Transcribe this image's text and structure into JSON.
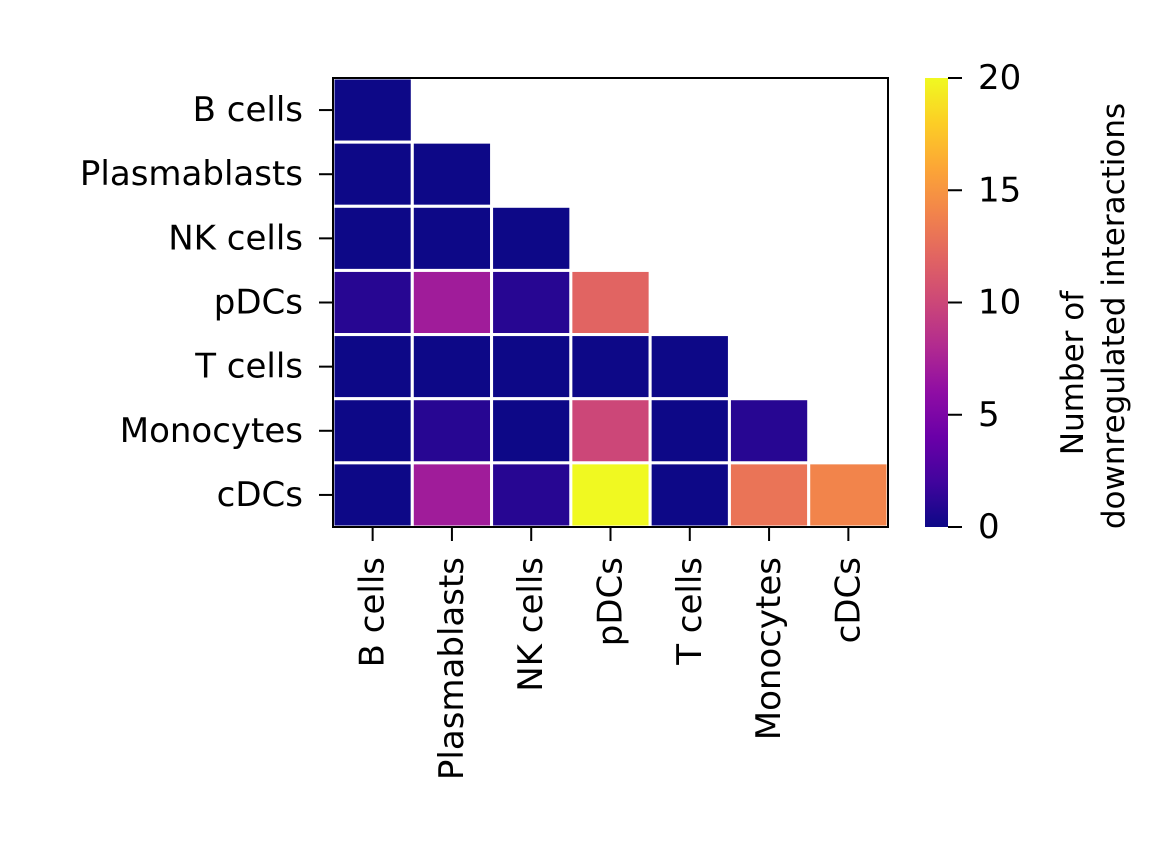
{
  "chart_data": {
    "type": "heatmap",
    "rows": [
      "B cells",
      "Plasmablasts",
      "NK cells",
      "pDCs",
      "T cells",
      "Monocytes",
      "cDCs"
    ],
    "columns": [
      "B cells",
      "Plasmablasts",
      "NK cells",
      "pDCs",
      "T cells",
      "Monocytes",
      "cDCs"
    ],
    "values": [
      [
        0
      ],
      [
        0,
        0
      ],
      [
        0,
        0,
        0
      ],
      [
        1,
        7,
        1,
        12
      ],
      [
        0,
        0,
        0,
        0,
        0
      ],
      [
        0,
        1,
        0,
        10,
        0,
        1
      ],
      [
        0,
        7,
        1,
        20,
        0,
        13,
        14
      ]
    ],
    "mask": "upper-triangle",
    "colormap": "plasma",
    "colorbar": {
      "range": [
        0,
        20
      ],
      "ticks": [
        "0",
        "5",
        "10",
        "15",
        "20"
      ],
      "label_line1": "Number of",
      "label_line2": "downregulated interactions"
    },
    "grid": false,
    "cell_border_color": "#ffffff"
  }
}
